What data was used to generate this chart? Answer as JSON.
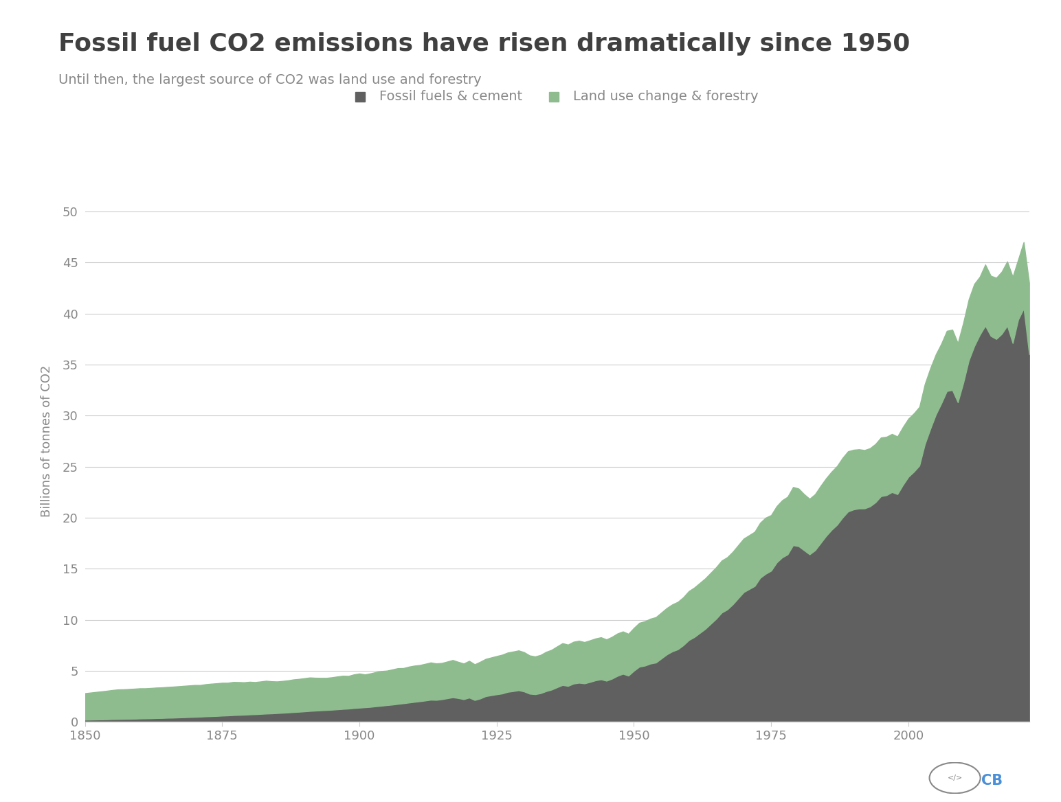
{
  "title": "Fossil fuel CO2 emissions have risen dramatically since 1950",
  "subtitle": "Until then, the largest source of CO2 was land use and forestry",
  "ylabel": "Billions of tonnes of CO2",
  "background_color": "#ffffff",
  "fossil_color": "#606060",
  "land_color": "#8fbc8f",
  "fossil_label": "Fossil fuels & cement",
  "land_label": "Land use change & forestry",
  "title_fontsize": 26,
  "subtitle_fontsize": 14,
  "ylabel_fontsize": 13,
  "tick_fontsize": 13,
  "legend_fontsize": 14,
  "ylim": [
    0,
    55
  ],
  "yticks": [
    0,
    5,
    10,
    15,
    20,
    25,
    30,
    35,
    40,
    45,
    50
  ],
  "years": [
    1850,
    1851,
    1852,
    1853,
    1854,
    1855,
    1856,
    1857,
    1858,
    1859,
    1860,
    1861,
    1862,
    1863,
    1864,
    1865,
    1866,
    1867,
    1868,
    1869,
    1870,
    1871,
    1872,
    1873,
    1874,
    1875,
    1876,
    1877,
    1878,
    1879,
    1880,
    1881,
    1882,
    1883,
    1884,
    1885,
    1886,
    1887,
    1888,
    1889,
    1890,
    1891,
    1892,
    1893,
    1894,
    1895,
    1896,
    1897,
    1898,
    1899,
    1900,
    1901,
    1902,
    1903,
    1904,
    1905,
    1906,
    1907,
    1908,
    1909,
    1910,
    1911,
    1912,
    1913,
    1914,
    1915,
    1916,
    1917,
    1918,
    1919,
    1920,
    1921,
    1922,
    1923,
    1924,
    1925,
    1926,
    1927,
    1928,
    1929,
    1930,
    1931,
    1932,
    1933,
    1934,
    1935,
    1936,
    1937,
    1938,
    1939,
    1940,
    1941,
    1942,
    1943,
    1944,
    1945,
    1946,
    1947,
    1948,
    1949,
    1950,
    1951,
    1952,
    1953,
    1954,
    1955,
    1956,
    1957,
    1958,
    1959,
    1960,
    1961,
    1962,
    1963,
    1964,
    1965,
    1966,
    1967,
    1968,
    1969,
    1970,
    1971,
    1972,
    1973,
    1974,
    1975,
    1976,
    1977,
    1978,
    1979,
    1980,
    1981,
    1982,
    1983,
    1984,
    1985,
    1986,
    1987,
    1988,
    1989,
    1990,
    1991,
    1992,
    1993,
    1994,
    1995,
    1996,
    1997,
    1998,
    1999,
    2000,
    2001,
    2002,
    2003,
    2004,
    2005,
    2006,
    2007,
    2008,
    2009,
    2010,
    2011,
    2012,
    2013,
    2014,
    2015,
    2016,
    2017,
    2018,
    2019,
    2020,
    2021,
    2022
  ],
  "fossil_fuels": [
    0.2,
    0.21,
    0.22,
    0.23,
    0.24,
    0.26,
    0.27,
    0.28,
    0.29,
    0.3,
    0.32,
    0.33,
    0.34,
    0.36,
    0.37,
    0.39,
    0.4,
    0.42,
    0.44,
    0.46,
    0.48,
    0.5,
    0.53,
    0.55,
    0.57,
    0.6,
    0.62,
    0.65,
    0.67,
    0.69,
    0.72,
    0.74,
    0.77,
    0.8,
    0.82,
    0.85,
    0.88,
    0.91,
    0.95,
    0.98,
    1.02,
    1.06,
    1.09,
    1.12,
    1.15,
    1.18,
    1.22,
    1.26,
    1.29,
    1.34,
    1.38,
    1.42,
    1.46,
    1.52,
    1.57,
    1.63,
    1.68,
    1.75,
    1.81,
    1.88,
    1.95,
    2.01,
    2.08,
    2.16,
    2.14,
    2.21,
    2.3,
    2.4,
    2.32,
    2.21,
    2.37,
    2.13,
    2.28,
    2.51,
    2.6,
    2.69,
    2.77,
    2.93,
    3.0,
    3.09,
    2.97,
    2.75,
    2.7,
    2.8,
    3.0,
    3.15,
    3.38,
    3.6,
    3.51,
    3.74,
    3.82,
    3.76,
    3.9,
    4.06,
    4.16,
    4.02,
    4.22,
    4.5,
    4.7,
    4.52,
    5.0,
    5.4,
    5.5,
    5.7,
    5.8,
    6.2,
    6.6,
    6.9,
    7.1,
    7.5,
    8.0,
    8.3,
    8.7,
    9.1,
    9.6,
    10.1,
    10.7,
    11.0,
    11.5,
    12.1,
    12.7,
    13.0,
    13.3,
    14.1,
    14.5,
    14.8,
    15.6,
    16.1,
    16.4,
    17.3,
    17.2,
    16.8,
    16.4,
    16.8,
    17.5,
    18.2,
    18.8,
    19.3,
    20.0,
    20.6,
    20.8,
    20.9,
    20.9,
    21.1,
    21.5,
    22.1,
    22.2,
    22.5,
    22.3,
    23.2,
    24.0,
    24.5,
    25.1,
    27.2,
    28.7,
    30.1,
    31.2,
    32.4,
    32.5,
    31.3,
    33.2,
    35.4,
    36.8,
    37.9,
    38.8,
    37.8,
    37.5,
    38.0,
    38.8,
    37.1,
    39.4,
    40.5,
    36.0
  ],
  "land_use": [
    2.6,
    2.65,
    2.7,
    2.75,
    2.8,
    2.85,
    2.9,
    2.9,
    2.92,
    2.94,
    2.96,
    2.95,
    2.97,
    2.99,
    3.0,
    3.02,
    3.04,
    3.06,
    3.08,
    3.1,
    3.12,
    3.1,
    3.15,
    3.18,
    3.2,
    3.22,
    3.2,
    3.25,
    3.22,
    3.18,
    3.2,
    3.15,
    3.18,
    3.22,
    3.15,
    3.1,
    3.12,
    3.15,
    3.2,
    3.22,
    3.25,
    3.28,
    3.22,
    3.18,
    3.15,
    3.18,
    3.22,
    3.25,
    3.2,
    3.3,
    3.35,
    3.22,
    3.28,
    3.35,
    3.4,
    3.38,
    3.45,
    3.5,
    3.45,
    3.52,
    3.55,
    3.55,
    3.6,
    3.65,
    3.58,
    3.55,
    3.6,
    3.65,
    3.55,
    3.5,
    3.6,
    3.5,
    3.6,
    3.65,
    3.7,
    3.75,
    3.8,
    3.85,
    3.88,
    3.9,
    3.85,
    3.75,
    3.7,
    3.75,
    3.85,
    3.9,
    4.0,
    4.1,
    4.05,
    4.1,
    4.12,
    4.05,
    4.08,
    4.1,
    4.12,
    4.05,
    4.1,
    4.15,
    4.15,
    4.1,
    4.2,
    4.3,
    4.35,
    4.4,
    4.45,
    4.5,
    4.55,
    4.6,
    4.65,
    4.7,
    4.8,
    4.85,
    4.9,
    4.95,
    5.0,
    5.05,
    5.1,
    5.12,
    5.15,
    5.2,
    5.25,
    5.28,
    5.32,
    5.4,
    5.5,
    5.45,
    5.52,
    5.6,
    5.65,
    5.7,
    5.65,
    5.5,
    5.45,
    5.5,
    5.6,
    5.65,
    5.7,
    5.75,
    5.85,
    5.9,
    5.85,
    5.8,
    5.72,
    5.7,
    5.72,
    5.75,
    5.72,
    5.7,
    5.65,
    5.68,
    5.7,
    5.72,
    5.75,
    5.9,
    5.95,
    5.9,
    5.85,
    5.9,
    5.92,
    5.8,
    5.9,
    6.0,
    6.1,
    5.7,
    6.0,
    5.9,
    6.0,
    6.1,
    6.3,
    6.5,
    5.9,
    6.5,
    7.0
  ]
}
